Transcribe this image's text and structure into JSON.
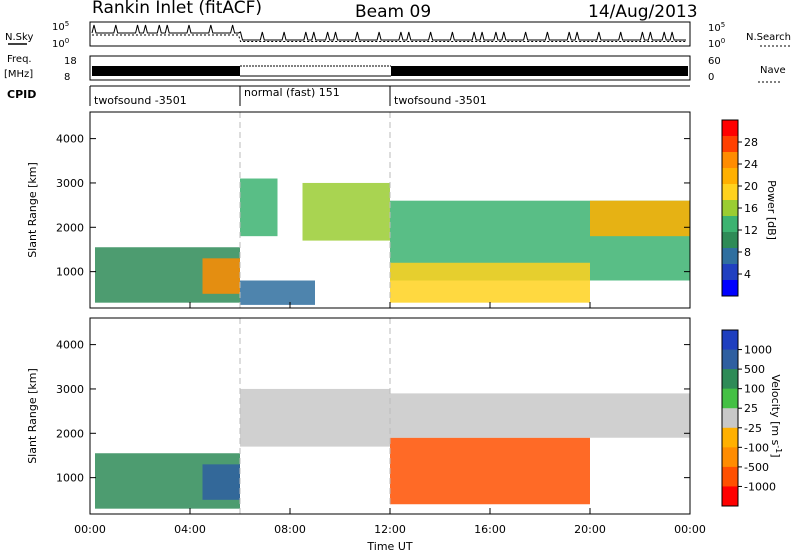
{
  "header": {
    "station": "Rankin Inlet (fitACF)",
    "beam": "Beam 09",
    "date": "14/Aug/2013"
  },
  "top_panels": {
    "nsky_label": "N.Sky",
    "nsearch_label": "N.Search",
    "nsky_ticks": [
      "10^5",
      "10^0"
    ],
    "nsearch_ticks": [
      "10^5",
      "10^0"
    ],
    "freq_label_1": "Freq.",
    "freq_label_2": "[MHz]",
    "freq_ticks": [
      "18",
      "8"
    ],
    "nave_label": "Nave",
    "nave_ticks": [
      "60",
      "0"
    ],
    "cpid_label": "CPID",
    "cpid_segments": [
      {
        "label": "twofsound -3501",
        "start": 0,
        "end": 6
      },
      {
        "label": "normal (fast) 151",
        "start": 6,
        "end": 12
      },
      {
        "label": "twofsound -3501",
        "start": 12,
        "end": 24
      }
    ]
  },
  "power_colorbar": {
    "label": "Power [dB]",
    "ticks": [
      "28",
      "24",
      "20",
      "16",
      "12",
      "8",
      "4"
    ],
    "colors": [
      "#ff0000",
      "#ff4000",
      "#ff8c00",
      "#ffb000",
      "#ffd21e",
      "#9acd32",
      "#3cb371",
      "#2e8b57",
      "#2f6f9f",
      "#2040c0",
      "#0000ff"
    ]
  },
  "velocity_colorbar": {
    "label": "Velocity [m s^-1]",
    "ticks": [
      "1000",
      "500",
      "100",
      "25",
      "-25",
      "-100",
      "-500",
      "-1000"
    ],
    "colors": [
      "#1f3fbf",
      "#2f5fa0",
      "#2e8b57",
      "#44c044",
      "#c8c8c8",
      "#ffb000",
      "#ff8c00",
      "#ff5000",
      "#ff0000"
    ]
  },
  "axes": {
    "ylabel": "Slant Range [km]",
    "xlabel": "Time UT",
    "x_ticks": [
      "00:00",
      "04:00",
      "08:00",
      "12:00",
      "16:00",
      "20:00",
      "00:00"
    ],
    "y_ticks": [
      "1000",
      "2000",
      "3000",
      "4000"
    ]
  },
  "chart_data": [
    {
      "type": "heatmap",
      "name": "Power",
      "xlabel": "Time UT",
      "ylabel": "Slant Range [km]",
      "xlim": [
        0,
        24
      ],
      "ylim": [
        180,
        4600
      ],
      "colorbar_label": "Power [dB]",
      "cells": [
        {
          "t0": 0.2,
          "t1": 6.0,
          "r0": 300,
          "r1": 1550,
          "v": 10
        },
        {
          "t0": 4.5,
          "t1": 6.0,
          "r0": 500,
          "r1": 1300,
          "v": 24
        },
        {
          "t0": 6.0,
          "t1": 9.0,
          "r0": 250,
          "r1": 800,
          "v": 8
        },
        {
          "t0": 6.0,
          "t1": 7.5,
          "r0": 1800,
          "r1": 3100,
          "v": 12
        },
        {
          "t0": 8.5,
          "t1": 12.0,
          "r0": 1700,
          "r1": 3000,
          "v": 16
        },
        {
          "t0": 12.0,
          "t1": 24.0,
          "r0": 800,
          "r1": 2600,
          "v": 14
        },
        {
          "t0": 12.0,
          "t1": 20.0,
          "r0": 300,
          "r1": 1200,
          "v": 20
        },
        {
          "t0": 20.0,
          "t1": 24.0,
          "r0": 1800,
          "r1": 2600,
          "v": 22
        }
      ]
    },
    {
      "type": "heatmap",
      "name": "Velocity",
      "xlabel": "Time UT",
      "ylabel": "Slant Range [km]",
      "xlim": [
        0,
        24
      ],
      "ylim": [
        180,
        4600
      ],
      "colorbar_label": "Velocity [m s^-1]",
      "cells": [
        {
          "t0": 0.2,
          "t1": 6.0,
          "r0": 300,
          "r1": 1550,
          "v": 100
        },
        {
          "t0": 4.5,
          "t1": 6.0,
          "r0": 500,
          "r1": 1300,
          "v": 500
        },
        {
          "t0": 6.0,
          "t1": 12.0,
          "r0": 1700,
          "r1": 3000,
          "v": 0
        },
        {
          "t0": 12.0,
          "t1": 20.0,
          "r0": 400,
          "r1": 1900,
          "v": -300
        },
        {
          "t0": 12.0,
          "t1": 24.0,
          "r0": 1900,
          "r1": 2900,
          "v": 0
        }
      ]
    }
  ]
}
